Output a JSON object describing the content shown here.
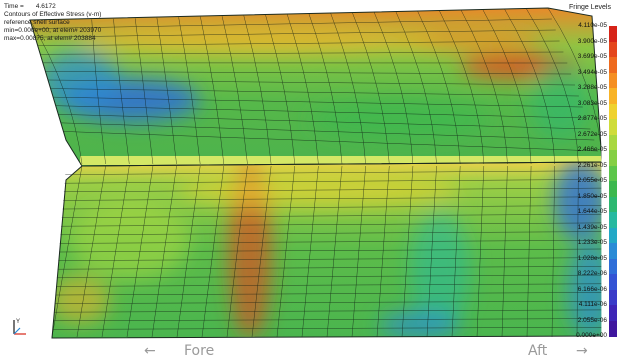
{
  "hud": {
    "time_label": "Time =",
    "time_value": "4.6172",
    "lines": [
      "Contours of Effective Stress (v-m)",
      "reference shell surface",
      "min=0.000e+00, at elem# 203970",
      "max=0.00875, at elem# 203884"
    ]
  },
  "legend": {
    "title": "Fringe Levels",
    "labels": [
      "4.110e-05",
      "3.900e-05",
      "3.699e-05",
      "3.494e-05",
      "3.288e-05",
      "3.083e-05",
      "2.877e-05",
      "2.672e-05",
      "2.466e-05",
      "2.261e-05",
      "2.055e-05",
      "1.850e-05",
      "1.644e-05",
      "1.439e-05",
      "1.233e-05",
      "1.028e-05",
      "8.222e-06",
      "6.166e-06",
      "4.111e-06",
      "2.055e-06",
      "0.000e+00"
    ],
    "colors": [
      "#d62418",
      "#e4461c",
      "#ee6a1e",
      "#f58f22",
      "#f8b326",
      "#efd22e",
      "#cfdc3a",
      "#a8d840",
      "#84cf44",
      "#5cc64a",
      "#3cb84e",
      "#2cb870",
      "#26b9a0",
      "#22a8c6",
      "#2a8bd6",
      "#2f6ed8",
      "#3353d4",
      "#3a3bc8",
      "#3e25b6",
      "#3f169e",
      "#3c0a8a"
    ]
  },
  "model": {
    "top_band_color": "#d4e866",
    "columns": 22,
    "rows_upper": 14,
    "rows_lower": 20
  },
  "triad": {
    "label": "Y"
  },
  "axis": {
    "fore_arrow": "←",
    "fore_label": "Fore",
    "aft_label": "Aft",
    "aft_arrow": "→"
  }
}
